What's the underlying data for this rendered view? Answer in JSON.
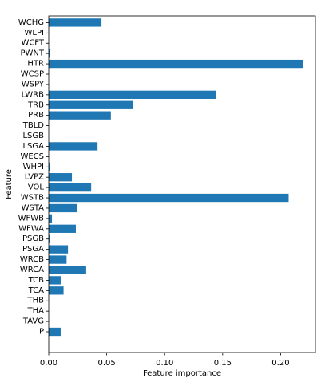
{
  "chart_data": {
    "type": "bar",
    "orientation": "horizontal",
    "xlabel": "Feature importance",
    "ylabel": "Feature",
    "xlim": [
      0,
      0.23
    ],
    "xticks": [
      0.0,
      0.05,
      0.1,
      0.15,
      0.2
    ],
    "xtick_labels": [
      "0.00",
      "0.05",
      "0.10",
      "0.15",
      "0.20"
    ],
    "grid": false,
    "bar_color": "#1f77b4",
    "categories": [
      "P",
      "TAVG",
      "THA",
      "THB",
      "TCA",
      "TCB",
      "WRCA",
      "WRCB",
      "PSGA",
      "PSGB",
      "WFWA",
      "WFWB",
      "WSTA",
      "WSTB",
      "VOL",
      "LVPZ",
      "WHPI",
      "WECS",
      "LSGA",
      "LSGB",
      "TBLD",
      "PRB",
      "TRB",
      "LWRB",
      "WSPY",
      "WCSP",
      "HTR",
      "PWNT",
      "WCFT",
      "WLPI",
      "WCHG"
    ],
    "values": [
      0.0103,
      0.0,
      0.0,
      0.0,
      0.0128,
      0.0103,
      0.0323,
      0.0154,
      0.0166,
      0.0008,
      0.0234,
      0.0028,
      0.0248,
      0.2069,
      0.0366,
      0.02,
      0.0012,
      0.0,
      0.0421,
      0.0,
      0.0,
      0.0536,
      0.0725,
      0.1444,
      0.0,
      0.0,
      0.219,
      0.0008,
      0.0,
      0.0,
      0.0455
    ]
  }
}
